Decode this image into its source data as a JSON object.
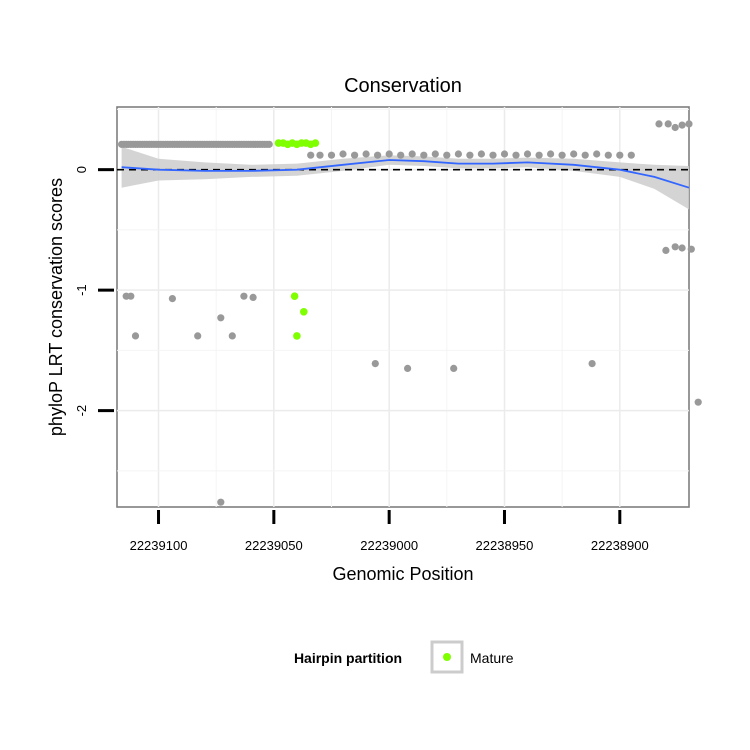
{
  "chart_data": {
    "type": "scatter",
    "title": "Conservation",
    "xlabel": "Genomic Position",
    "ylabel": "phyloP LRT conservation scores",
    "x_reversed": true,
    "xlim": [
      22239118,
      22238870
    ],
    "ylim": [
      -2.8,
      0.52
    ],
    "x_ticks": [
      22239100,
      22239050,
      22239000,
      22238950,
      22238900
    ],
    "x_tick_labels": [
      "22239100",
      "22239050",
      "22239000",
      "22238950",
      "22238900"
    ],
    "y_ticks": [
      0,
      -1,
      -2
    ],
    "y_tick_labels": [
      "0",
      "-1",
      "-2"
    ],
    "reference_line": {
      "y": 0,
      "style": "dashed"
    },
    "grid": true,
    "legend": {
      "title": "Hairpin partition",
      "position": "bottom",
      "entries": [
        {
          "label": "Mature",
          "color": "#7fff00"
        }
      ]
    },
    "colors": {
      "other": "#999999",
      "mature": "#7fff00",
      "smooth_line": "#3366ff",
      "smooth_band": "#cccccc",
      "panel_border": "#7f7f7f"
    },
    "series": [
      {
        "name": "Other",
        "points": [
          [
            22239114,
            -1.05
          ],
          [
            22239112,
            -1.05
          ],
          [
            22239110,
            -1.38
          ],
          [
            22239094,
            -1.07
          ],
          [
            22239083,
            -1.38
          ],
          [
            22239073,
            -2.76
          ],
          [
            22239073,
            -1.23
          ],
          [
            22239068,
            -1.38
          ],
          [
            22239063,
            -1.05
          ],
          [
            22239059,
            -1.06
          ],
          [
            22239006,
            -1.61
          ],
          [
            22238992,
            -1.65
          ],
          [
            22238972,
            -1.65
          ],
          [
            22238912,
            -1.61
          ],
          [
            22238880,
            -0.67
          ],
          [
            22238876,
            -0.64
          ],
          [
            22238873,
            -0.65
          ],
          [
            22238869,
            -0.66
          ],
          [
            22238866,
            -1.93
          ],
          [
            22238883,
            0.38
          ],
          [
            22238879,
            0.38
          ],
          [
            22238876,
            0.35
          ],
          [
            22238873,
            0.37
          ],
          [
            22238870,
            0.38
          ],
          [
            22239034,
            0.12
          ],
          [
            22239030,
            0.12
          ],
          [
            22239025,
            0.12
          ],
          [
            22239020,
            0.13
          ],
          [
            22239015,
            0.12
          ],
          [
            22239010,
            0.13
          ],
          [
            22239005,
            0.12
          ],
          [
            22239000,
            0.13
          ],
          [
            22238995,
            0.12
          ],
          [
            22238990,
            0.13
          ],
          [
            22238985,
            0.12
          ],
          [
            22238980,
            0.13
          ],
          [
            22238975,
            0.12
          ],
          [
            22238970,
            0.13
          ],
          [
            22238965,
            0.12
          ],
          [
            22238960,
            0.13
          ],
          [
            22238955,
            0.12
          ],
          [
            22238950,
            0.13
          ],
          [
            22238945,
            0.12
          ],
          [
            22238940,
            0.13
          ],
          [
            22238935,
            0.12
          ],
          [
            22238930,
            0.13
          ],
          [
            22238925,
            0.12
          ],
          [
            22238920,
            0.13
          ],
          [
            22238915,
            0.12
          ],
          [
            22238910,
            0.13
          ],
          [
            22238905,
            0.12
          ],
          [
            22238900,
            0.12
          ],
          [
            22238895,
            0.12
          ]
        ]
      },
      {
        "name": "Mature",
        "points": [
          [
            22239048,
            0.22
          ],
          [
            22239046,
            0.22
          ],
          [
            22239044,
            0.21
          ],
          [
            22239042,
            0.22
          ],
          [
            22239040,
            0.21
          ],
          [
            22239038,
            0.22
          ],
          [
            22239036,
            0.22
          ],
          [
            22239034,
            0.21
          ],
          [
            22239032,
            0.22
          ],
          [
            22239041,
            -1.05
          ],
          [
            22239040,
            -1.38
          ],
          [
            22239037,
            -1.18
          ]
        ]
      }
    ],
    "other_band": {
      "x_from": 22239116,
      "x_to": 22239052,
      "y": 0.21
    },
    "smooth": {
      "x": [
        22239116,
        22239100,
        22239080,
        22239060,
        22239040,
        22239020,
        22239000,
        22238985,
        22238970,
        22238955,
        22238940,
        22238920,
        22238900,
        22238885,
        22238870
      ],
      "y": [
        0.02,
        0.0,
        -0.01,
        -0.01,
        0.0,
        0.04,
        0.08,
        0.07,
        0.05,
        0.05,
        0.06,
        0.04,
        0.0,
        -0.06,
        -0.15
      ],
      "se": [
        0.17,
        0.09,
        0.07,
        0.05,
        0.05,
        0.05,
        0.04,
        0.04,
        0.04,
        0.04,
        0.04,
        0.05,
        0.06,
        0.1,
        0.18
      ]
    }
  }
}
